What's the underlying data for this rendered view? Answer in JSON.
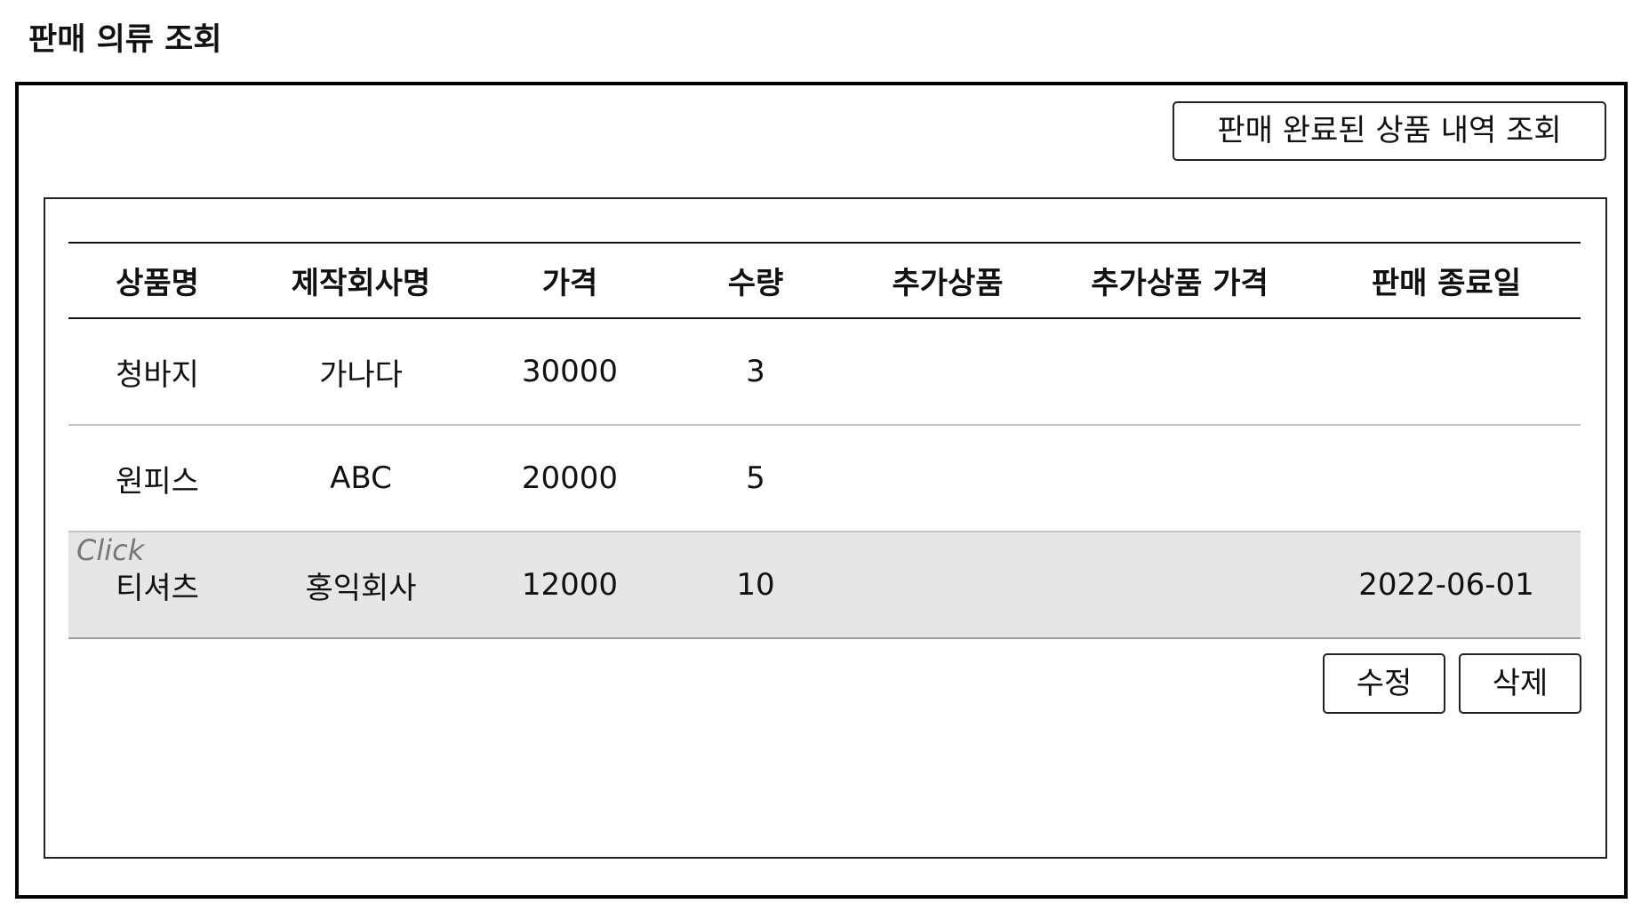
{
  "page": {
    "title": "판매 의류 조회"
  },
  "toolbar": {
    "history_button_label": "판매 완료된 상품 내역 조회"
  },
  "table": {
    "columns": [
      "상품명",
      "제작회사명",
      "가격",
      "수량",
      "추가상품",
      "추가상품 가격",
      "판매 종료일"
    ],
    "rows": [
      {
        "name": "청바지",
        "maker": "가나다",
        "price": "30000",
        "qty": "3",
        "extra": "",
        "extra_price": "",
        "end_date": ""
      },
      {
        "name": "원피스",
        "maker": "ABC",
        "price": "20000",
        "qty": "5",
        "extra": "",
        "extra_price": "",
        "end_date": ""
      },
      {
        "name": "티셔츠",
        "maker": "홍익회사",
        "price": "12000",
        "qty": "10",
        "extra": "",
        "extra_price": "",
        "end_date": "2022-06-01"
      }
    ],
    "click_hint": "Click",
    "selected_row_color": "#e6e6e6"
  },
  "actions": {
    "edit_label": "수정",
    "delete_label": "삭제"
  }
}
